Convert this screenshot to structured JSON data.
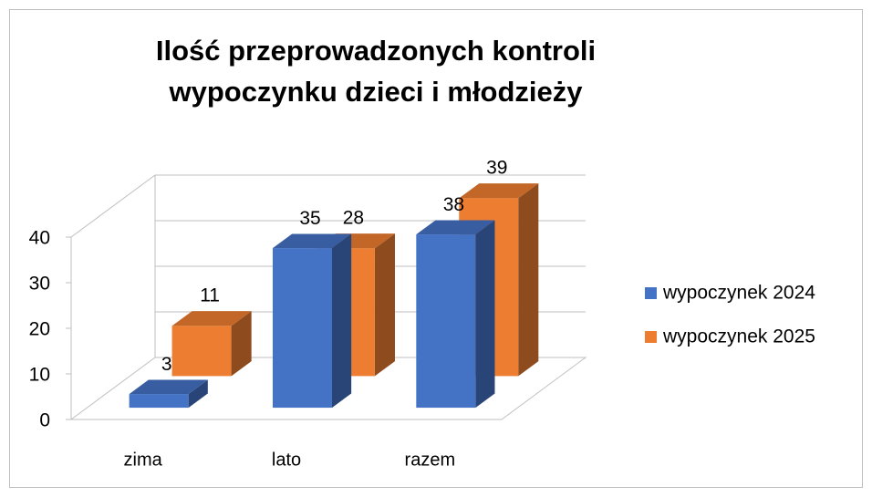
{
  "chart_data": {
    "type": "bar3d",
    "title": [
      "Ilość przeprowadzonych kontroli",
      "wypoczynku dzieci i młodzieży"
    ],
    "categories": [
      "zima",
      "lato",
      "razem"
    ],
    "series": [
      {
        "name": "wypoczynek 2024",
        "color": "#4472c4",
        "values": [
          3,
          35,
          38
        ]
      },
      {
        "name": "wypoczynek 2025",
        "color": "#ed7d31",
        "values": [
          11,
          28,
          39
        ]
      }
    ],
    "ylim": [
      0,
      40
    ],
    "yticks": [
      0,
      10,
      20,
      30,
      40
    ],
    "grid": true,
    "legend": "right"
  }
}
